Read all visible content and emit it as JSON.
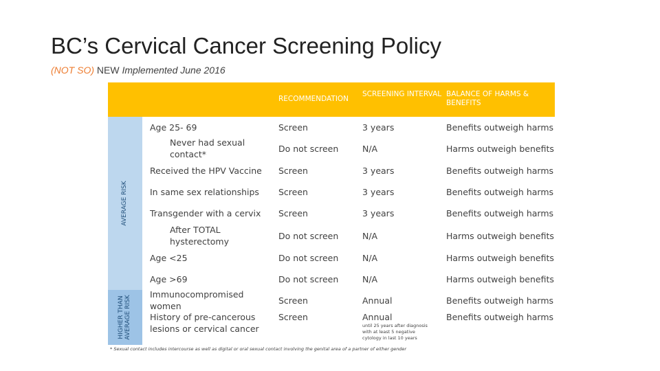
{
  "header": {
    "title": "BC’s Cervical Cancer Screening Policy",
    "subtitle_prefix": "(NOT SO)",
    "subtitle_new": "NEW",
    "subtitle_rest": "Implemented June 2016"
  },
  "table": {
    "columns": [
      "RECOMMENDATION",
      "SCREENING INTERVAL",
      "BALANCE OF HARMS & BENEFITS"
    ],
    "groups": [
      {
        "label_lines": [
          "AVERAGE RISK"
        ],
        "rows": [
          0,
          7
        ]
      },
      {
        "label_lines": [
          "HIGHER THAN",
          "AVERAGE RISK"
        ],
        "rows": [
          8,
          9
        ]
      }
    ],
    "rows": [
      {
        "label": "Age 25- 69",
        "sub": false,
        "cells": [
          "Screen",
          "3 years",
          "Benefits outweigh harms"
        ]
      },
      {
        "label": "Never had sexual contact*",
        "sub": true,
        "cells": [
          "Do not screen",
          "N/A",
          "Harms outweigh benefits"
        ]
      },
      {
        "label": "Received the HPV Vaccine",
        "sub": false,
        "cells": [
          "Screen",
          "3 years",
          "Benefits outweigh harms"
        ]
      },
      {
        "label": "In same sex relationships",
        "sub": false,
        "cells": [
          "Screen",
          "3 years",
          "Benefits outweigh harms"
        ]
      },
      {
        "label": "Transgender with a cervix",
        "sub": false,
        "cells": [
          "Screen",
          "3 years",
          "Benefits outweigh harms"
        ]
      },
      {
        "label": "After TOTAL hysterectomy",
        "sub": true,
        "cells": [
          "Do not screen",
          "N/A",
          "Harms outweigh benefits"
        ]
      },
      {
        "label": "Age <25",
        "sub": false,
        "cells": [
          "Do not screen",
          "N/A",
          "Harms outweigh benefits"
        ]
      },
      {
        "label": "Age >69",
        "sub": false,
        "cells": [
          "Do not screen",
          "N/A",
          "Harms outweigh benefits"
        ]
      },
      {
        "label": "Immunocompromised women",
        "sub": false,
        "cells": [
          "Screen",
          "Annual",
          "Benefits outweigh harms"
        ]
      },
      {
        "label": "History of pre-cancerous lesions or cervical cancer",
        "sub": false,
        "cells": [
          "Screen",
          "Annual",
          "Benefits outweigh harms"
        ],
        "note": "until 25 years after diagnosis with at least 5 negative cytology in last 10 years"
      }
    ]
  },
  "footnote": "* Sexual contact includes intercourse as well as digital or oral sexual contact involving the genital area of a partner of either gender"
}
